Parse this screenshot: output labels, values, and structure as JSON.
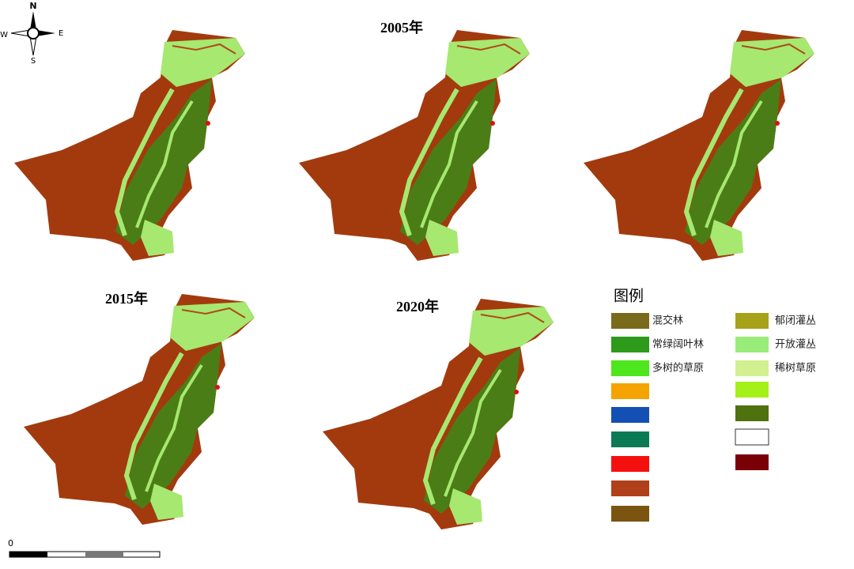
{
  "compass": {
    "north": "N",
    "east": "E",
    "south": "S",
    "west": "W"
  },
  "maps": [
    {
      "title": "2005年"
    },
    {
      "title": "2015年"
    },
    {
      "title": "2020年"
    }
  ],
  "legend": {
    "title": "图例",
    "items": [
      {
        "label": "混交林",
        "color": "#7a6a1c"
      },
      {
        "label": "郁闭灌丛",
        "color": "#a8a21a"
      },
      {
        "label": "常绿阔叶林",
        "color": "#2e9a1a"
      },
      {
        "label": "开放灌丛",
        "color": "#9aec7a"
      },
      {
        "label": "多树的草原",
        "color": "#4ee61c"
      },
      {
        "label": "稀树草原",
        "color": "#d2f090"
      }
    ]
  },
  "scale": {
    "start": "0"
  }
}
